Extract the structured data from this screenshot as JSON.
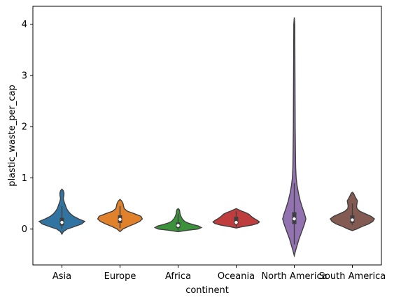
{
  "chart_data": {
    "type": "violin",
    "xlabel": "continent",
    "ylabel": "plastic_waste_per_cap",
    "ylim": [
      -0.7,
      4.35
    ],
    "yticks": [
      0,
      1,
      2,
      3,
      4
    ],
    "grid": false,
    "categories": [
      "Asia",
      "Europe",
      "Africa",
      "Oceania",
      "North America",
      "South America"
    ],
    "violins": [
      {
        "name": "Asia",
        "color": "#3274a1",
        "min": -0.1,
        "max": 0.78,
        "q1": 0.07,
        "median": 0.13,
        "q3": 0.22,
        "whisker_low": 0.01,
        "whisker_high": 0.45,
        "profile": [
          [
            -0.1,
            0.0
          ],
          [
            -0.05,
            0.06
          ],
          [
            0.0,
            0.22
          ],
          [
            0.05,
            0.55
          ],
          [
            0.1,
            0.85
          ],
          [
            0.15,
            0.98
          ],
          [
            0.2,
            0.72
          ],
          [
            0.25,
            0.5
          ],
          [
            0.3,
            0.36
          ],
          [
            0.35,
            0.27
          ],
          [
            0.4,
            0.2
          ],
          [
            0.45,
            0.16
          ],
          [
            0.5,
            0.12
          ],
          [
            0.55,
            0.08
          ],
          [
            0.6,
            0.06
          ],
          [
            0.65,
            0.08
          ],
          [
            0.7,
            0.09
          ],
          [
            0.75,
            0.06
          ],
          [
            0.78,
            0.0
          ]
        ]
      },
      {
        "name": "Europe",
        "color": "#e1812c",
        "min": -0.05,
        "max": 0.58,
        "q1": 0.12,
        "median": 0.19,
        "q3": 0.27,
        "whisker_low": 0.02,
        "whisker_high": 0.45,
        "profile": [
          [
            -0.05,
            0.0
          ],
          [
            0.0,
            0.12
          ],
          [
            0.05,
            0.35
          ],
          [
            0.1,
            0.62
          ],
          [
            0.15,
            0.85
          ],
          [
            0.2,
            0.96
          ],
          [
            0.25,
            0.9
          ],
          [
            0.3,
            0.62
          ],
          [
            0.35,
            0.32
          ],
          [
            0.4,
            0.18
          ],
          [
            0.45,
            0.15
          ],
          [
            0.5,
            0.13
          ],
          [
            0.55,
            0.07
          ],
          [
            0.58,
            0.0
          ]
        ]
      },
      {
        "name": "Africa",
        "color": "#3a923a",
        "min": -0.05,
        "max": 0.4,
        "q1": 0.02,
        "median": 0.07,
        "q3": 0.13,
        "whisker_low": -0.02,
        "whisker_high": 0.3,
        "profile": [
          [
            -0.05,
            0.0
          ],
          [
            -0.02,
            0.45
          ],
          [
            0.0,
            0.85
          ],
          [
            0.03,
            1.0
          ],
          [
            0.06,
            0.88
          ],
          [
            0.09,
            0.62
          ],
          [
            0.12,
            0.42
          ],
          [
            0.15,
            0.28
          ],
          [
            0.2,
            0.18
          ],
          [
            0.25,
            0.12
          ],
          [
            0.3,
            0.08
          ],
          [
            0.35,
            0.07
          ],
          [
            0.38,
            0.05
          ],
          [
            0.4,
            0.0
          ]
        ]
      },
      {
        "name": "Oceania",
        "color": "#c03d3e",
        "min": 0.02,
        "max": 0.4,
        "q1": 0.09,
        "median": 0.13,
        "q3": 0.24,
        "whisker_low": 0.03,
        "whisker_high": 0.35,
        "profile": [
          [
            0.02,
            0.0
          ],
          [
            0.05,
            0.32
          ],
          [
            0.08,
            0.68
          ],
          [
            0.11,
            0.92
          ],
          [
            0.14,
            1.0
          ],
          [
            0.17,
            0.92
          ],
          [
            0.2,
            0.8
          ],
          [
            0.23,
            0.7
          ],
          [
            0.26,
            0.62
          ],
          [
            0.29,
            0.55
          ],
          [
            0.32,
            0.42
          ],
          [
            0.35,
            0.25
          ],
          [
            0.38,
            0.1
          ],
          [
            0.4,
            0.0
          ]
        ]
      },
      {
        "name": "North America",
        "color": "#9372b2",
        "min": -0.52,
        "max": 4.13,
        "q1": 0.1,
        "median": 0.2,
        "q3": 0.33,
        "whisker_low": -0.3,
        "whisker_high": 0.9,
        "profile": [
          [
            -0.52,
            0.0
          ],
          [
            -0.4,
            0.07
          ],
          [
            -0.2,
            0.2
          ],
          [
            0.0,
            0.36
          ],
          [
            0.1,
            0.44
          ],
          [
            0.2,
            0.5
          ],
          [
            0.3,
            0.44
          ],
          [
            0.4,
            0.36
          ],
          [
            0.55,
            0.26
          ],
          [
            0.7,
            0.18
          ],
          [
            0.85,
            0.12
          ],
          [
            1.0,
            0.08
          ],
          [
            1.2,
            0.06
          ],
          [
            1.5,
            0.05
          ],
          [
            2.0,
            0.04
          ],
          [
            3.0,
            0.03
          ],
          [
            4.0,
            0.02
          ],
          [
            4.13,
            0.0
          ]
        ]
      },
      {
        "name": "South America",
        "color": "#845b53",
        "min": -0.03,
        "max": 0.72,
        "q1": 0.12,
        "median": 0.18,
        "q3": 0.27,
        "whisker_low": 0.08,
        "whisker_high": 0.5,
        "profile": [
          [
            -0.03,
            0.0
          ],
          [
            0.0,
            0.18
          ],
          [
            0.05,
            0.42
          ],
          [
            0.1,
            0.7
          ],
          [
            0.15,
            0.88
          ],
          [
            0.2,
            0.95
          ],
          [
            0.25,
            0.8
          ],
          [
            0.3,
            0.55
          ],
          [
            0.35,
            0.32
          ],
          [
            0.4,
            0.2
          ],
          [
            0.45,
            0.18
          ],
          [
            0.5,
            0.2
          ],
          [
            0.55,
            0.22
          ],
          [
            0.6,
            0.16
          ],
          [
            0.65,
            0.1
          ],
          [
            0.7,
            0.05
          ],
          [
            0.72,
            0.0
          ]
        ]
      }
    ]
  }
}
